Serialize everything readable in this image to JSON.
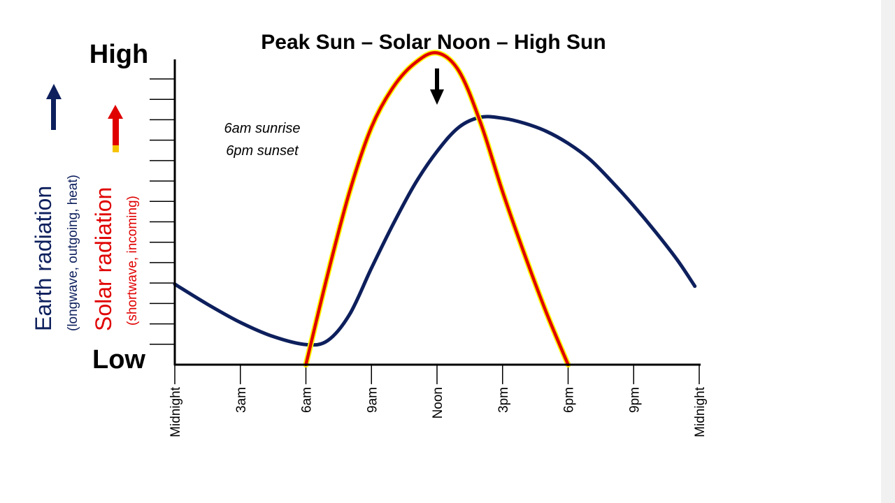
{
  "chart_data": {
    "type": "line",
    "title": "Peak Sun – Solar Noon – High Sun",
    "ylim_labels": {
      "high": "High",
      "low": "Low"
    },
    "x_ticks": [
      "Midnight",
      "3am",
      "6am",
      "9am",
      "Noon",
      "3pm",
      "6pm",
      "9pm",
      "Midnight"
    ],
    "xlim": [
      0,
      24
    ],
    "ylim": [
      0,
      15
    ],
    "annotations": [
      "6am sunrise",
      "6pm sunset"
    ],
    "peak_marker": {
      "x": 12,
      "type": "arrow"
    },
    "grid": false,
    "y_labels": [
      {
        "main": "Earth radiation",
        "sub": "(longwave, outgoing, heat)",
        "color": "#0d1f5c"
      },
      {
        "main": "Solar radiation",
        "sub": "(shortwave, incoming)",
        "color": "#e00000"
      }
    ],
    "series": [
      {
        "key": "solar",
        "color": "#e00000",
        "outline": "#ffff00",
        "points": [
          [
            6,
            0
          ],
          [
            7,
            4.5
          ],
          [
            8,
            8.6
          ],
          [
            9,
            11.8
          ],
          [
            10,
            13.8
          ],
          [
            11,
            15.0
          ],
          [
            12,
            15.5
          ],
          [
            13,
            14.6
          ],
          [
            14,
            12.0
          ],
          [
            15,
            8.6
          ],
          [
            16,
            5.5
          ],
          [
            17,
            2.6
          ],
          [
            18,
            0
          ]
        ]
      },
      {
        "key": "earth",
        "color": "#0d1f5c",
        "points": [
          [
            0,
            4.0
          ],
          [
            1.5,
            3.0
          ],
          [
            3,
            2.1
          ],
          [
            4.5,
            1.4
          ],
          [
            6,
            1.0
          ],
          [
            7,
            1.2
          ],
          [
            8,
            2.5
          ],
          [
            9,
            4.8
          ],
          [
            10,
            7.0
          ],
          [
            11,
            9.0
          ],
          [
            12,
            10.6
          ],
          [
            13,
            11.8
          ],
          [
            14,
            12.3
          ],
          [
            15,
            12.25
          ],
          [
            16,
            12.0
          ],
          [
            17,
            11.6
          ],
          [
            18,
            11.0
          ],
          [
            19,
            10.2
          ],
          [
            20,
            9.1
          ],
          [
            21,
            7.9
          ],
          [
            22,
            6.6
          ],
          [
            23,
            5.2
          ],
          [
            23.8,
            3.9
          ]
        ]
      }
    ]
  }
}
